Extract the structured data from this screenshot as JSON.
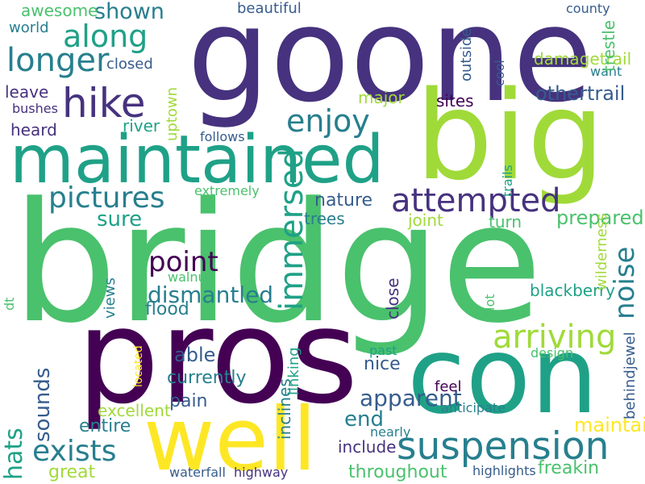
{
  "colors": {
    "background": "#ffffff",
    "palette": [
      "#440154",
      "#46327e",
      "#365c8d",
      "#277f8e",
      "#1fa187",
      "#4ac16d",
      "#a0da39",
      "#fde725"
    ]
  },
  "words": [
    "bridge",
    "goone",
    "big",
    "pros",
    "con",
    "well",
    "maintained",
    "suspension",
    "hike",
    "attempted",
    "arriving",
    "longer",
    "enjoy",
    "along",
    "pictures",
    "exists",
    "point",
    "shown",
    "sure",
    "dismantled",
    "apparent",
    "end",
    "othertrail",
    "able",
    "prepared",
    "nature",
    "flood",
    "currently",
    "pain",
    "nice",
    "freakin",
    "great",
    "entire",
    "trees",
    "joint",
    "turn",
    "awesome",
    "beautiful",
    "world",
    "closed",
    "damagetrail",
    "leave",
    "major",
    "sites",
    "heard",
    "river",
    "bushes",
    "follows",
    "extremely",
    "want",
    "county",
    "include",
    "excellent",
    "maintaining",
    "throughout",
    "past",
    "design",
    "feel",
    "anticipate",
    "nearly",
    "blackberry",
    "walnut",
    "highlights",
    "waterfall",
    "highway",
    "immersed",
    "noise",
    "hats",
    "sounds",
    "uptown",
    "cool",
    "trestle",
    "outside",
    "trails",
    "close",
    "wilderness",
    "lot",
    "views",
    "dt",
    "inclines",
    "linking",
    "located",
    "behindjewel"
  ]
}
